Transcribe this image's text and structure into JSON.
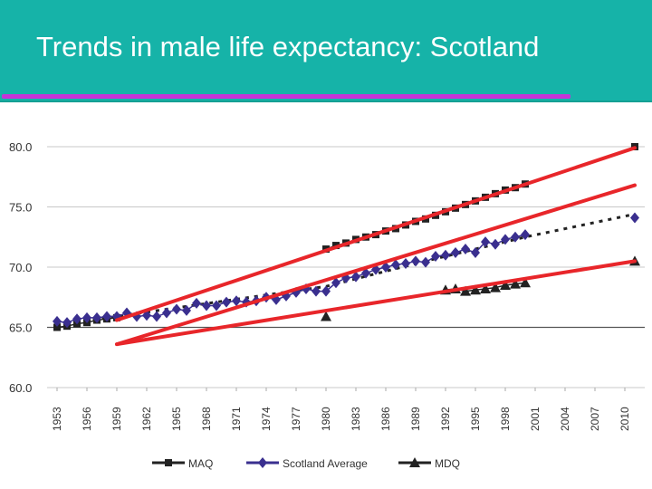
{
  "slide": {
    "title": "Trends in male life expectancy: Scotland",
    "colors": {
      "header": "#16b3a8",
      "underline": "#c633d8",
      "trend": "#e8262a",
      "series": "#222222",
      "scotland": "#3a2f8f"
    }
  },
  "chart_data": {
    "type": "line",
    "ylim": [
      60,
      80
    ],
    "y_ticks": [
      "80.0",
      "75.0",
      "70.0",
      "65.0",
      "60.0"
    ],
    "x_ticks": [
      "1953",
      "1956",
      "1959",
      "1962",
      "1965",
      "1968",
      "1971",
      "1974",
      "1977",
      "1980",
      "1983",
      "1986",
      "1989",
      "1992",
      "1995",
      "1998",
      "2001",
      "2004",
      "2007",
      "2010"
    ],
    "xlim": [
      1952,
      2012
    ],
    "grid": "horizontal",
    "legend_position": "bottom",
    "series": [
      {
        "name": "MAQ",
        "marker": "square",
        "color": "#222222",
        "x": [
          1953,
          1954,
          1955,
          1956,
          1957,
          1958,
          1959,
          1980,
          1981,
          1982,
          1983,
          1984,
          1985,
          1986,
          1987,
          1988,
          1989,
          1990,
          1991,
          1992,
          1993,
          1994,
          1995,
          1996,
          1997,
          1998,
          1999,
          2000,
          2011
        ],
        "y": [
          65.0,
          65.1,
          65.3,
          65.4,
          65.6,
          65.7,
          65.8,
          71.5,
          71.8,
          72.0,
          72.3,
          72.5,
          72.7,
          73.0,
          73.2,
          73.5,
          73.8,
          74.0,
          74.3,
          74.6,
          74.9,
          75.2,
          75.5,
          75.8,
          76.1,
          76.4,
          76.6,
          76.9,
          80.0
        ]
      },
      {
        "name": "Scotland Average",
        "marker": "diamond",
        "color": "#3a2f8f",
        "x": [
          1953,
          1954,
          1955,
          1956,
          1957,
          1958,
          1959,
          1960,
          1961,
          1962,
          1963,
          1964,
          1965,
          1966,
          1967,
          1968,
          1969,
          1970,
          1971,
          1972,
          1973,
          1974,
          1975,
          1976,
          1977,
          1978,
          1979,
          1980,
          1981,
          1982,
          1983,
          1984,
          1985,
          1986,
          1987,
          1988,
          1989,
          1990,
          1991,
          1992,
          1993,
          1994,
          1995,
          1996,
          1997,
          1998,
          1999,
          2000,
          2011
        ],
        "y": [
          65.5,
          65.4,
          65.7,
          65.8,
          65.8,
          65.9,
          65.9,
          66.2,
          65.9,
          66.0,
          65.9,
          66.2,
          66.5,
          66.4,
          67.0,
          66.8,
          66.8,
          67.1,
          67.2,
          67.1,
          67.2,
          67.5,
          67.3,
          67.6,
          67.9,
          68.2,
          68.0,
          68.0,
          68.7,
          69.1,
          69.2,
          69.5,
          69.8,
          70.0,
          70.2,
          70.3,
          70.5,
          70.4,
          70.9,
          71.0,
          71.2,
          71.5,
          71.2,
          72.1,
          71.9,
          72.3,
          72.5,
          72.7,
          74.1
        ]
      },
      {
        "name": "MDQ",
        "marker": "triangle",
        "color": "#222222",
        "x": [
          1980,
          1992,
          1993,
          1994,
          1995,
          1996,
          1997,
          1998,
          1999,
          2000,
          2011
        ],
        "y": [
          65.9,
          68.1,
          68.2,
          68.0,
          68.1,
          68.2,
          68.3,
          68.5,
          68.6,
          68.7,
          70.5
        ]
      }
    ],
    "trend_projection": {
      "style": "dotted",
      "color": "#222222",
      "x": [
        1953,
        1980,
        1990,
        2000,
        2011
      ],
      "y": [
        65.2,
        68.4,
        70.5,
        72.5,
        74.4
      ]
    },
    "annotation_lines": {
      "color": "#e8262a",
      "lines": [
        {
          "x": [
            1959,
            2011
          ],
          "y": [
            65.6,
            79.9
          ]
        },
        {
          "x": [
            1959,
            2011
          ],
          "y": [
            63.6,
            76.8
          ]
        },
        {
          "x": [
            1959,
            2011
          ],
          "y": [
            63.6,
            70.5
          ]
        }
      ]
    }
  }
}
